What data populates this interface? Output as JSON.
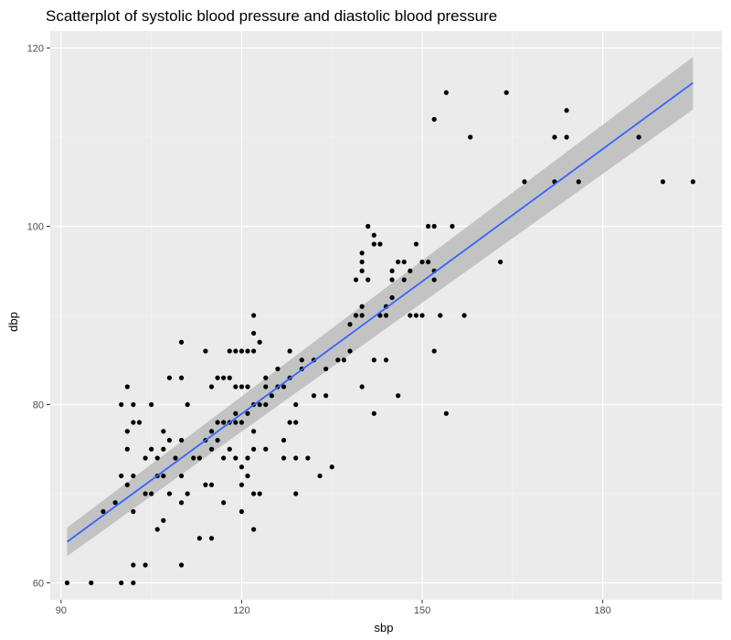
{
  "chart_data": {
    "type": "scatter",
    "title": "Scatterplot of systolic blood pressure and diastolic blood pressure",
    "xlabel": "sbp",
    "ylabel": "dbp",
    "xlim": [
      88.2,
      199.8
    ],
    "ylim": [
      58.1,
      121.9
    ],
    "x_ticks": [
      90,
      120,
      150,
      180
    ],
    "y_ticks": [
      60,
      80,
      100,
      120
    ],
    "grid": true,
    "legend": "none",
    "colors": {
      "panel": "#ebebeb",
      "grid_major": "#ffffff",
      "grid_minor": "#f5f5f5",
      "points": "#000000",
      "fit_line": "#3366ff",
      "ci_band": "#bfbfbf",
      "tick_label": "#4d4d4d"
    },
    "points": [
      [
        91,
        60
      ],
      [
        95,
        60
      ],
      [
        97,
        68
      ],
      [
        99,
        69
      ],
      [
        100,
        60
      ],
      [
        100,
        72
      ],
      [
        100,
        80
      ],
      [
        101,
        71
      ],
      [
        101,
        75
      ],
      [
        101,
        77
      ],
      [
        101,
        82
      ],
      [
        102,
        60
      ],
      [
        102,
        62
      ],
      [
        102,
        68
      ],
      [
        102,
        72
      ],
      [
        102,
        78
      ],
      [
        102,
        80
      ],
      [
        103,
        78
      ],
      [
        104,
        62
      ],
      [
        104,
        70
      ],
      [
        104,
        74
      ],
      [
        105,
        70
      ],
      [
        105,
        75
      ],
      [
        105,
        80
      ],
      [
        106,
        66
      ],
      [
        106,
        72
      ],
      [
        106,
        74
      ],
      [
        107,
        67
      ],
      [
        107,
        72
      ],
      [
        107,
        75
      ],
      [
        107,
        77
      ],
      [
        108,
        70
      ],
      [
        108,
        76
      ],
      [
        108,
        83
      ],
      [
        109,
        74
      ],
      [
        110,
        62
      ],
      [
        110,
        69
      ],
      [
        110,
        72
      ],
      [
        110,
        76
      ],
      [
        110,
        83
      ],
      [
        110,
        87
      ],
      [
        111,
        70
      ],
      [
        111,
        80
      ],
      [
        112,
        74
      ],
      [
        113,
        65
      ],
      [
        113,
        74
      ],
      [
        114,
        71
      ],
      [
        114,
        76
      ],
      [
        114,
        86
      ],
      [
        115,
        65
      ],
      [
        115,
        71
      ],
      [
        115,
        75
      ],
      [
        115,
        77
      ],
      [
        115,
        82
      ],
      [
        116,
        76
      ],
      [
        116,
        78
      ],
      [
        116,
        83
      ],
      [
        117,
        69
      ],
      [
        117,
        74
      ],
      [
        117,
        78
      ],
      [
        117,
        83
      ],
      [
        118,
        75
      ],
      [
        118,
        78
      ],
      [
        118,
        83
      ],
      [
        118,
        86
      ],
      [
        119,
        74
      ],
      [
        119,
        78
      ],
      [
        119,
        79
      ],
      [
        119,
        82
      ],
      [
        119,
        86
      ],
      [
        120,
        68
      ],
      [
        120,
        71
      ],
      [
        120,
        73
      ],
      [
        120,
        78
      ],
      [
        120,
        82
      ],
      [
        120,
        86
      ],
      [
        121,
        72
      ],
      [
        121,
        74
      ],
      [
        121,
        79
      ],
      [
        121,
        82
      ],
      [
        121,
        86
      ],
      [
        122,
        66
      ],
      [
        122,
        70
      ],
      [
        122,
        75
      ],
      [
        122,
        77
      ],
      [
        122,
        80
      ],
      [
        122,
        86
      ],
      [
        122,
        88
      ],
      [
        122,
        90
      ],
      [
        123,
        70
      ],
      [
        123,
        80
      ],
      [
        123,
        87
      ],
      [
        124,
        75
      ],
      [
        124,
        80
      ],
      [
        124,
        82
      ],
      [
        124,
        83
      ],
      [
        125,
        81
      ],
      [
        126,
        82
      ],
      [
        126,
        84
      ],
      [
        127,
        74
      ],
      [
        127,
        76
      ],
      [
        127,
        82
      ],
      [
        128,
        78
      ],
      [
        128,
        83
      ],
      [
        128,
        86
      ],
      [
        129,
        70
      ],
      [
        129,
        74
      ],
      [
        129,
        78
      ],
      [
        129,
        80
      ],
      [
        130,
        84
      ],
      [
        130,
        85
      ],
      [
        131,
        74
      ],
      [
        132,
        81
      ],
      [
        132,
        85
      ],
      [
        133,
        72
      ],
      [
        134,
        81
      ],
      [
        134,
        84
      ],
      [
        135,
        73
      ],
      [
        136,
        85
      ],
      [
        137,
        85
      ],
      [
        138,
        86
      ],
      [
        138,
        89
      ],
      [
        139,
        90
      ],
      [
        139,
        94
      ],
      [
        140,
        82
      ],
      [
        140,
        90
      ],
      [
        140,
        91
      ],
      [
        140,
        95
      ],
      [
        140,
        96
      ],
      [
        140,
        97
      ],
      [
        141,
        100
      ],
      [
        141,
        94
      ],
      [
        142,
        79
      ],
      [
        142,
        85
      ],
      [
        142,
        98
      ],
      [
        142,
        99
      ],
      [
        143,
        90
      ],
      [
        143,
        98
      ],
      [
        144,
        85
      ],
      [
        144,
        90
      ],
      [
        144,
        91
      ],
      [
        145,
        92
      ],
      [
        145,
        94
      ],
      [
        145,
        95
      ],
      [
        146,
        81
      ],
      [
        146,
        96
      ],
      [
        147,
        94
      ],
      [
        147,
        96
      ],
      [
        148,
        90
      ],
      [
        148,
        95
      ],
      [
        149,
        90
      ],
      [
        149,
        98
      ],
      [
        150,
        90
      ],
      [
        150,
        96
      ],
      [
        151,
        96
      ],
      [
        151,
        100
      ],
      [
        152,
        86
      ],
      [
        152,
        94
      ],
      [
        152,
        95
      ],
      [
        152,
        100
      ],
      [
        152,
        112
      ],
      [
        153,
        90
      ],
      [
        154,
        79
      ],
      [
        154,
        115
      ],
      [
        155,
        100
      ],
      [
        157,
        90
      ],
      [
        158,
        110
      ],
      [
        163,
        96
      ],
      [
        164,
        115
      ],
      [
        167,
        105
      ],
      [
        172,
        105
      ],
      [
        172,
        110
      ],
      [
        174,
        110
      ],
      [
        174,
        113
      ],
      [
        176,
        105
      ],
      [
        186,
        110
      ],
      [
        190,
        105
      ],
      [
        195,
        105
      ]
    ],
    "fit": {
      "x0": 91,
      "y0": 64.6,
      "x1": 195,
      "y1": 116.1,
      "ci0": [
        63.0,
        66.2
      ],
      "ci1": [
        113.1,
        119.0
      ]
    }
  }
}
